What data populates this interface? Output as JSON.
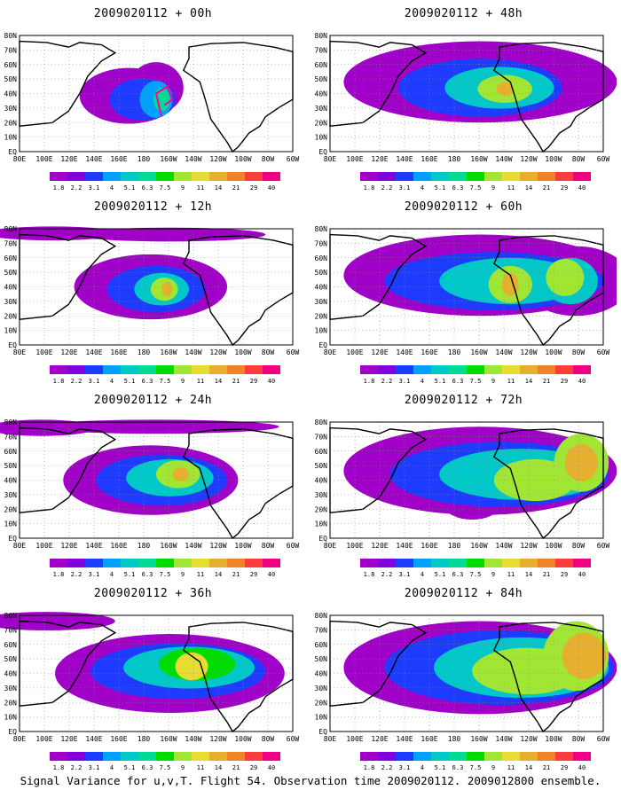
{
  "panels": [
    {
      "title": "2009020112 + 00h",
      "stage": 0
    },
    {
      "title": "2009020112 + 48h",
      "stage": 4
    },
    {
      "title": "2009020112 + 12h",
      "stage": 1
    },
    {
      "title": "2009020112 + 60h",
      "stage": 5
    },
    {
      "title": "2009020112 + 24h",
      "stage": 2
    },
    {
      "title": "2009020112 + 72h",
      "stage": 6
    },
    {
      "title": "2009020112 + 36h",
      "stage": 3
    },
    {
      "title": "2009020112 + 84h",
      "stage": 7
    }
  ],
  "lat_labels": [
    "80N",
    "70N",
    "60N",
    "50N",
    "40N",
    "30N",
    "20N",
    "10N",
    "EQ"
  ],
  "lon_labels": [
    "80E",
    "100E",
    "120E",
    "140E",
    "160E",
    "180",
    "160W",
    "140W",
    "120W",
    "100W",
    "80W",
    "60W"
  ],
  "legend": {
    "labels": [
      "1.8",
      "2.2",
      "3.1",
      "4",
      "5.1",
      "6.3",
      "7.5",
      "9",
      "11",
      "14",
      "21",
      "29",
      "40"
    ],
    "colors": [
      "#a000c8",
      "#8200dc",
      "#1e3cff",
      "#00a0ff",
      "#00c8c8",
      "#00dc96",
      "#00dc00",
      "#a0e632",
      "#e6dc32",
      "#e6af2d",
      "#f08228",
      "#fa3c3c",
      "#f00082"
    ]
  },
  "footer": "Signal Variance for u,v,T. Flight 54. Observation time 2009020112. 2009012800 ensemble."
}
